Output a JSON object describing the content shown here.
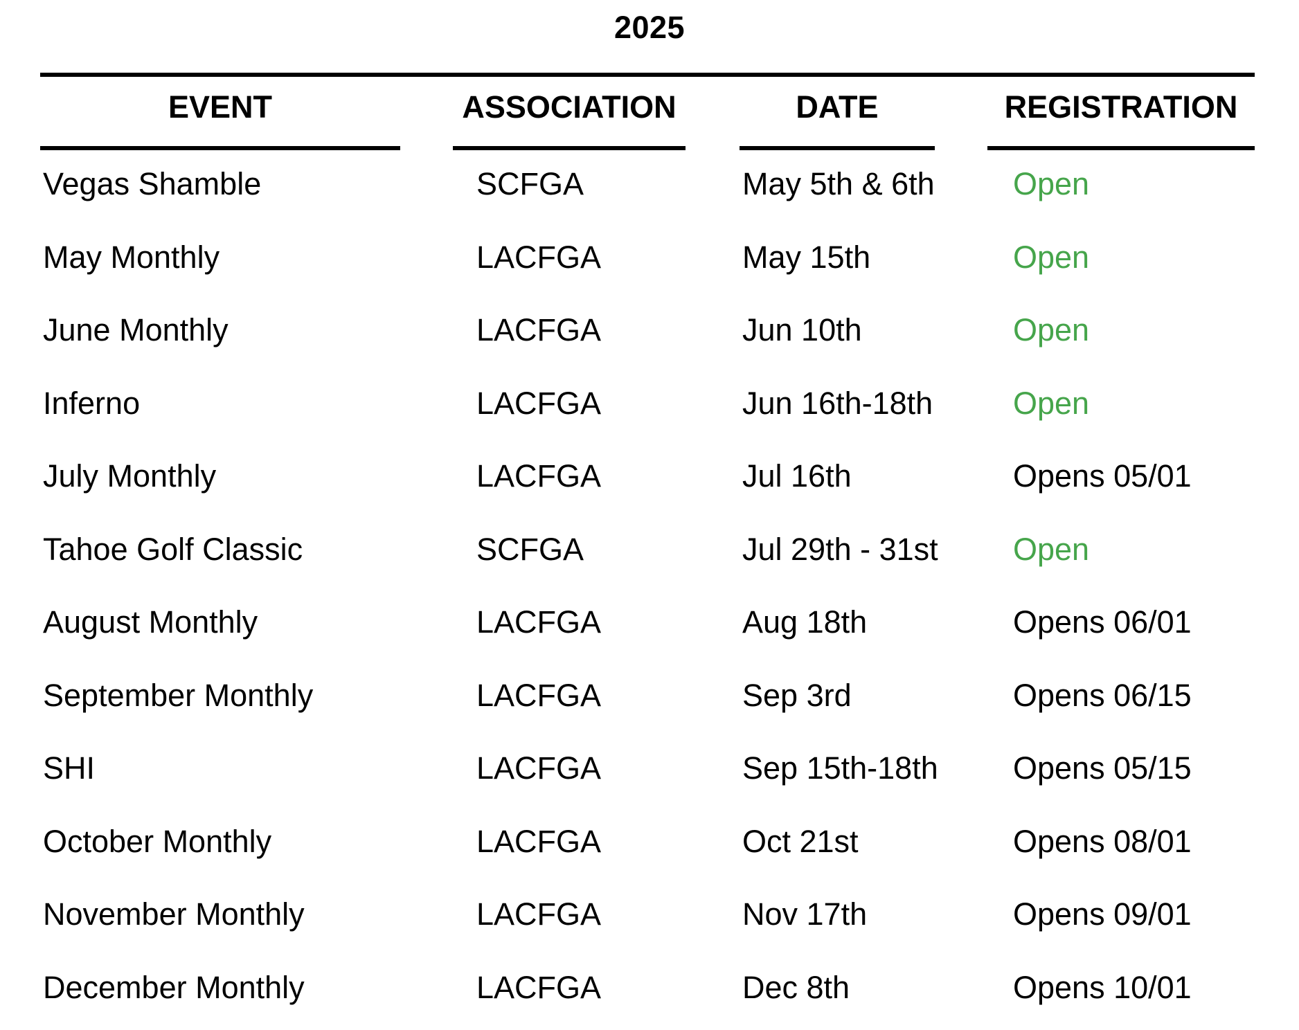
{
  "title": "2025",
  "colors": {
    "open_green": "#46a54b",
    "text_black": "#000000"
  },
  "table": {
    "headers": [
      {
        "label": "EVENT"
      },
      {
        "label": "ASSOCIATION"
      },
      {
        "label": "DATE"
      },
      {
        "label": "REGISTRATION"
      }
    ],
    "rows": [
      {
        "event": "Vegas Shamble",
        "association": "SCFGA",
        "date": "May 5th & 6th",
        "registration": "Open",
        "registration_open": true
      },
      {
        "event": "May Monthly",
        "association": "LACFGA",
        "date": "May 15th",
        "registration": "Open",
        "registration_open": true
      },
      {
        "event": "June Monthly",
        "association": "LACFGA",
        "date": "Jun 10th",
        "registration": "Open",
        "registration_open": true
      },
      {
        "event": "Inferno",
        "association": "LACFGA",
        "date": "Jun 16th-18th",
        "registration": "Open",
        "registration_open": true
      },
      {
        "event": "July Monthly",
        "association": "LACFGA",
        "date": "Jul 16th",
        "registration": "Opens 05/01",
        "registration_open": false
      },
      {
        "event": "Tahoe Golf Classic",
        "association": "SCFGA",
        "date": "Jul 29th - 31st",
        "registration": "Open",
        "registration_open": true
      },
      {
        "event": "August Monthly",
        "association": "LACFGA",
        "date": "Aug 18th",
        "registration": "Opens 06/01",
        "registration_open": false
      },
      {
        "event": "September Monthly",
        "association": "LACFGA",
        "date": "Sep 3rd",
        "registration": "Opens 06/15",
        "registration_open": false
      },
      {
        "event": "SHI",
        "association": "LACFGA",
        "date": "Sep 15th-18th",
        "registration": "Opens 05/15",
        "registration_open": false
      },
      {
        "event": "October Monthly",
        "association": "LACFGA",
        "date": "Oct 21st",
        "registration": "Opens 08/01",
        "registration_open": false
      },
      {
        "event": "November Monthly",
        "association": "LACFGA",
        "date": "Nov 17th",
        "registration": "Opens 09/01",
        "registration_open": false
      },
      {
        "event": "December Monthly",
        "association": "LACFGA",
        "date": "Dec 8th",
        "registration": "Opens 10/01",
        "registration_open": false
      }
    ]
  }
}
